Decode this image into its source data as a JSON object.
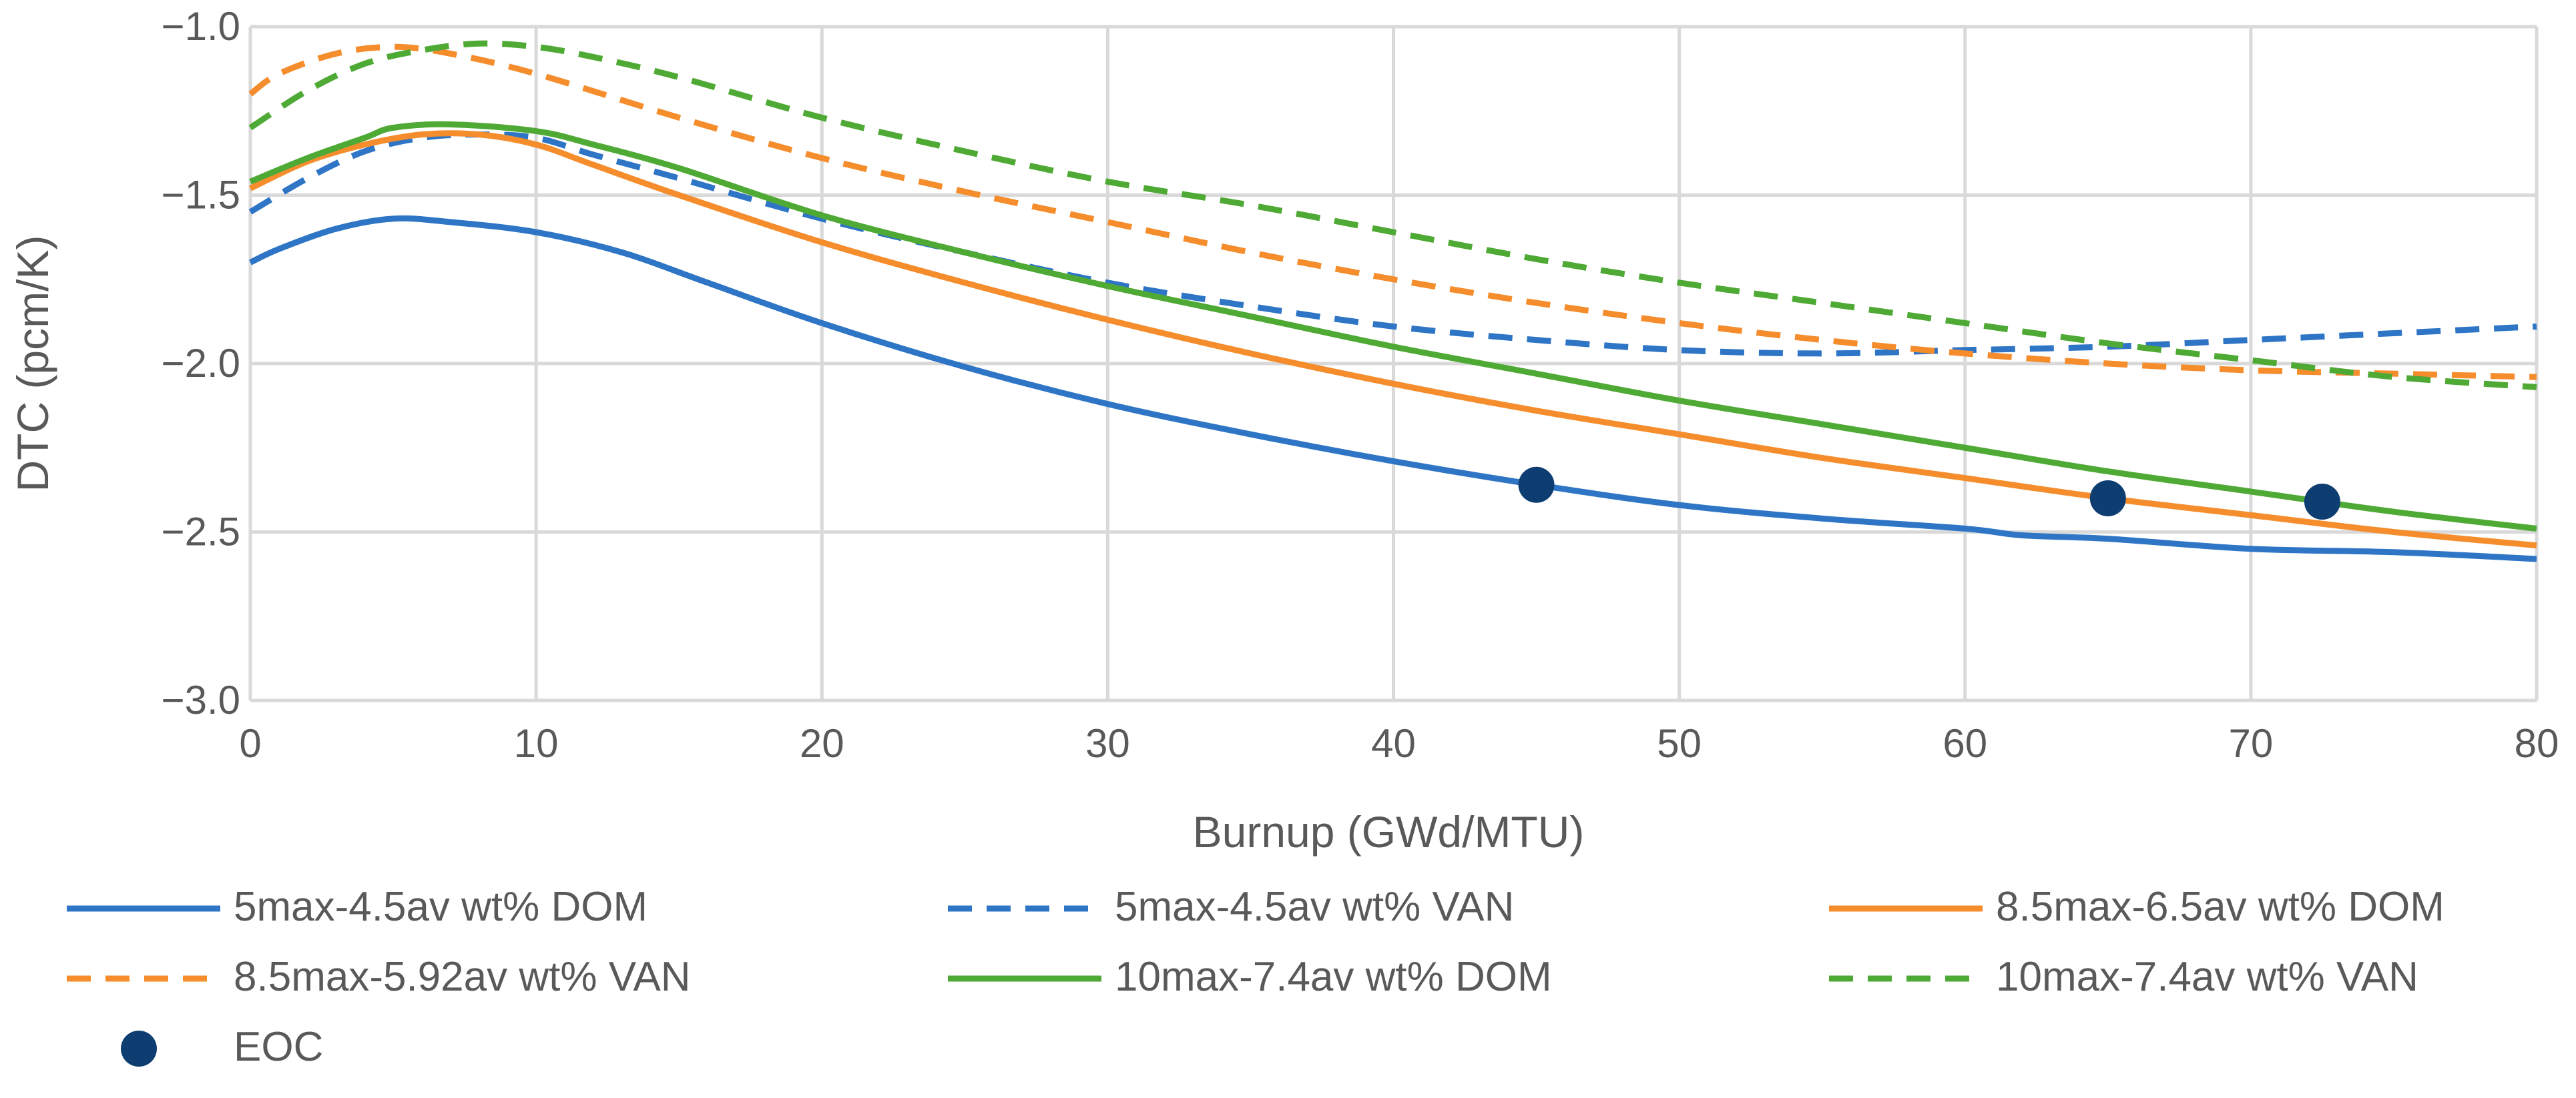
{
  "chart_data": {
    "type": "line",
    "title": "",
    "xlabel": "Burnup (GWd/MTU)",
    "ylabel": "DTC (pcm/K)",
    "xlim": [
      0,
      80
    ],
    "ylim": [
      -3.0,
      -1.0
    ],
    "xticks": [
      0,
      10,
      20,
      30,
      40,
      50,
      60,
      70,
      80
    ],
    "xtick_labels": [
      "0",
      "10",
      "20",
      "30",
      "40",
      "50",
      "60",
      "70",
      "80"
    ],
    "yticks": [
      -1.0,
      -1.5,
      -2.0,
      -2.5,
      -3.0
    ],
    "ytick_labels": [
      "−1.0",
      "−1.5",
      "−2.0",
      "−2.5",
      "−3.0"
    ],
    "grid": true,
    "legend_position": "bottom",
    "series": [
      {
        "name": "5max-4.5av wt% DOM",
        "color": "#2E75C6",
        "dash": "solid",
        "x": [
          0,
          1,
          3,
          5,
          7,
          10,
          13,
          16,
          20,
          25,
          30,
          35,
          40,
          45,
          50,
          55,
          60,
          62,
          65,
          70,
          75,
          80
        ],
        "y": [
          -1.7,
          -1.66,
          -1.6,
          -1.57,
          -1.58,
          -1.61,
          -1.67,
          -1.76,
          -1.88,
          -2.01,
          -2.12,
          -2.21,
          -2.29,
          -2.36,
          -2.42,
          -2.46,
          -2.49,
          -2.51,
          -2.52,
          -2.55,
          -2.56,
          -2.58
        ]
      },
      {
        "name": "5max-4.5av wt% VAN",
        "color": "#2E75C6",
        "dash": "dashed",
        "x": [
          0,
          2,
          4,
          6,
          8,
          10,
          12,
          15,
          20,
          25,
          30,
          35,
          40,
          45,
          50,
          55,
          60,
          65,
          70,
          75,
          80
        ],
        "y": [
          -1.55,
          -1.45,
          -1.37,
          -1.33,
          -1.32,
          -1.33,
          -1.38,
          -1.45,
          -1.57,
          -1.67,
          -1.76,
          -1.83,
          -1.89,
          -1.93,
          -1.96,
          -1.97,
          -1.96,
          -1.95,
          -1.93,
          -1.91,
          -1.89
        ]
      },
      {
        "name": "8.5max-6.5av wt% DOM",
        "color": "#F58D2D",
        "dash": "solid",
        "x": [
          0,
          2,
          4,
          6,
          8,
          10,
          12,
          15,
          20,
          25,
          30,
          35,
          40,
          45,
          50,
          55,
          60,
          65,
          70,
          75,
          80
        ],
        "y": [
          -1.48,
          -1.4,
          -1.35,
          -1.32,
          -1.32,
          -1.35,
          -1.41,
          -1.5,
          -1.64,
          -1.76,
          -1.87,
          -1.97,
          -2.06,
          -2.14,
          -2.21,
          -2.28,
          -2.34,
          -2.4,
          -2.45,
          -2.5,
          -2.54
        ]
      },
      {
        "name": "8.5max-5.92av wt% VAN",
        "color": "#F58D2D",
        "dash": "dashed",
        "x": [
          0,
          1,
          3,
          5,
          7,
          10,
          15,
          20,
          25,
          30,
          35,
          40,
          45,
          50,
          55,
          60,
          65,
          70,
          75,
          80
        ],
        "y": [
          -1.2,
          -1.14,
          -1.08,
          -1.06,
          -1.08,
          -1.14,
          -1.27,
          -1.39,
          -1.49,
          -1.58,
          -1.67,
          -1.75,
          -1.82,
          -1.88,
          -1.93,
          -1.97,
          -2.0,
          -2.02,
          -2.03,
          -2.04
        ]
      },
      {
        "name": "10max-7.4av wt% DOM",
        "color": "#4EAA34",
        "dash": "solid",
        "x": [
          0,
          2,
          4,
          5,
          7,
          10,
          12,
          15,
          20,
          25,
          30,
          35,
          40,
          45,
          50,
          55,
          60,
          65,
          70,
          75,
          80
        ],
        "y": [
          -1.46,
          -1.39,
          -1.33,
          -1.3,
          -1.29,
          -1.31,
          -1.35,
          -1.42,
          -1.56,
          -1.67,
          -1.77,
          -1.86,
          -1.95,
          -2.03,
          -2.11,
          -2.18,
          -2.25,
          -2.32,
          -2.38,
          -2.44,
          -2.49
        ]
      },
      {
        "name": "10max-7.4av wt% VAN",
        "color": "#4EAA34",
        "dash": "dashed",
        "x": [
          0,
          2,
          4,
          6,
          8,
          10,
          12,
          15,
          20,
          25,
          30,
          35,
          40,
          45,
          50,
          55,
          60,
          65,
          70,
          75,
          80
        ],
        "y": [
          -1.3,
          -1.19,
          -1.11,
          -1.07,
          -1.05,
          -1.06,
          -1.09,
          -1.15,
          -1.27,
          -1.37,
          -1.46,
          -1.53,
          -1.61,
          -1.69,
          -1.76,
          -1.82,
          -1.88,
          -1.94,
          -1.99,
          -2.04,
          -2.07
        ]
      }
    ],
    "markers": {
      "name": "EOC",
      "color": "#0E3D72",
      "points": [
        {
          "x": 45,
          "y": -2.36
        },
        {
          "x": 65,
          "y": -2.4
        },
        {
          "x": 72.5,
          "y": -2.41
        }
      ]
    }
  }
}
